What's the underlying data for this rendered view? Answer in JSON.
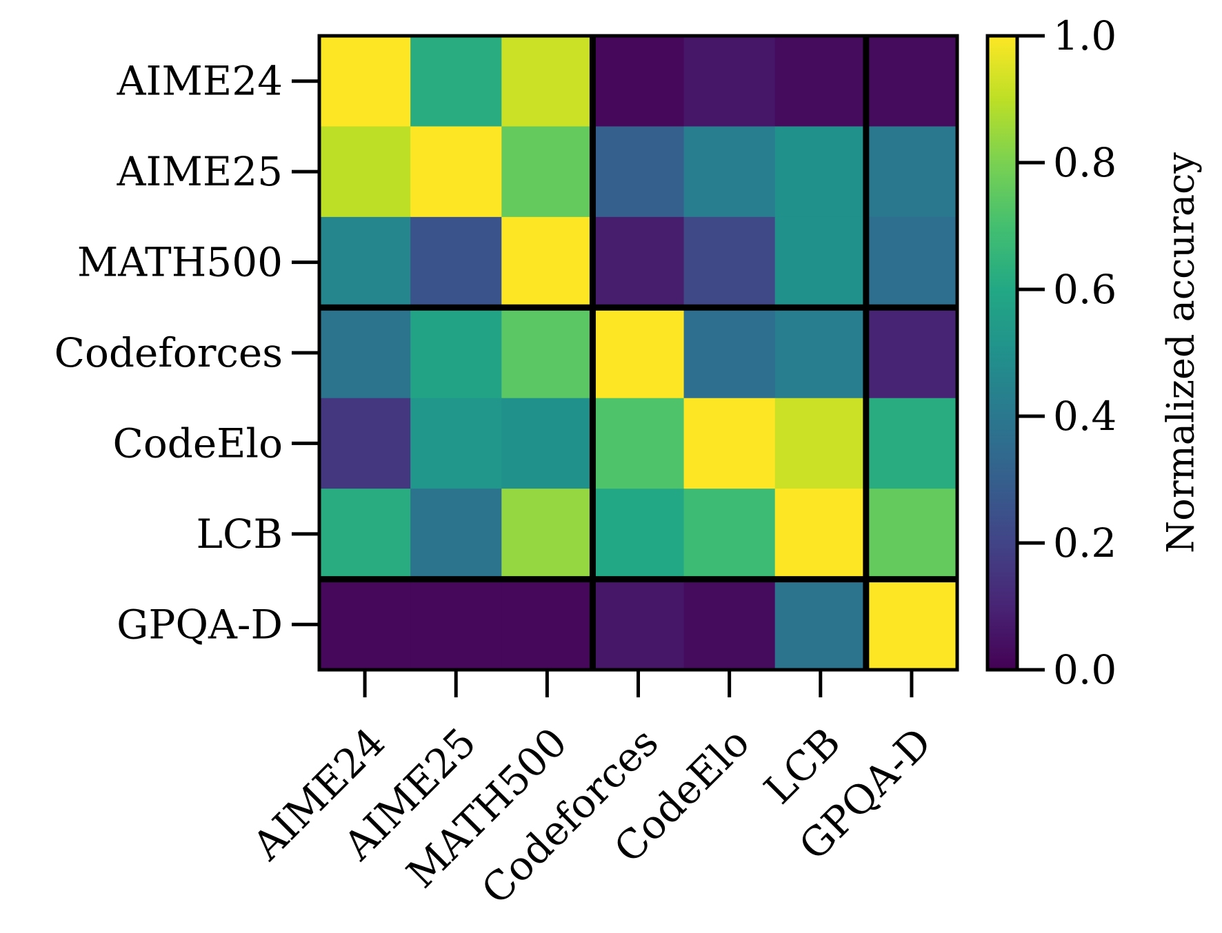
{
  "chart_data": {
    "type": "heatmap",
    "rows": [
      "AIME24",
      "AIME25",
      "MATH500",
      "Codeforces",
      "CodeElo",
      "LCB",
      "GPQA-D"
    ],
    "cols": [
      "AIME24",
      "AIME25",
      "MATH500",
      "Codeforces",
      "CodeElo",
      "LCB",
      "GPQA-D"
    ],
    "values": [
      [
        1.0,
        0.62,
        0.92,
        0.02,
        0.06,
        0.03,
        0.03
      ],
      [
        0.9,
        1.0,
        0.76,
        0.3,
        0.42,
        0.5,
        0.4
      ],
      [
        0.46,
        0.26,
        1.0,
        0.08,
        0.22,
        0.5,
        0.36
      ],
      [
        0.38,
        0.58,
        0.74,
        1.0,
        0.36,
        0.42,
        0.1
      ],
      [
        0.16,
        0.52,
        0.5,
        0.72,
        1.0,
        0.92,
        0.62
      ],
      [
        0.62,
        0.38,
        0.84,
        0.6,
        0.68,
        1.0,
        0.76
      ],
      [
        0.02,
        0.02,
        0.02,
        0.06,
        0.03,
        0.38,
        1.0
      ]
    ],
    "group_boundaries": [
      3,
      6
    ],
    "colormap": "viridis",
    "colorbar": {
      "label": "Normalized accuracy",
      "range": [
        0.0,
        1.0
      ],
      "ticks": [
        "0.0",
        "0.2",
        "0.4",
        "0.6",
        "0.8",
        "1.0"
      ]
    },
    "title": "",
    "xlabel": "",
    "ylabel": ""
  }
}
